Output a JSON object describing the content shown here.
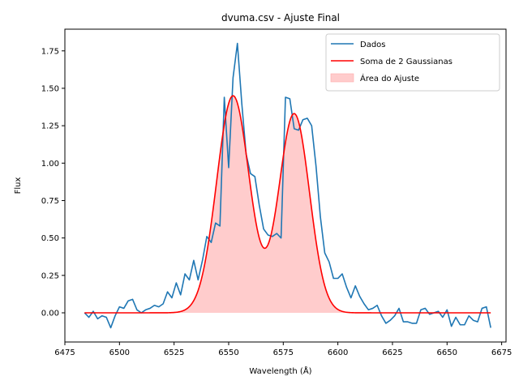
{
  "chart_data": {
    "type": "line",
    "title": "dvuma.csv - Ajuste Final",
    "xlabel": "Wavelength (Å)",
    "ylabel": "Flux",
    "xlim": [
      6475,
      6677
    ],
    "ylim": [
      -0.195,
      1.895
    ],
    "xticks": [
      6475,
      6500,
      6525,
      6550,
      6575,
      6600,
      6625,
      6650,
      6675
    ],
    "yticks": [
      0.0,
      0.25,
      0.5,
      0.75,
      1.0,
      1.25,
      1.5,
      1.75
    ],
    "xtick_labels": [
      "6475",
      "6500",
      "6525",
      "6550",
      "6575",
      "6600",
      "6625",
      "6650",
      "6675"
    ],
    "ytick_labels": [
      "0.00",
      "0.25",
      "0.50",
      "0.75",
      "1.00",
      "1.25",
      "1.50",
      "1.75"
    ],
    "grid": false,
    "legend_position": "top-right",
    "legend": [
      {
        "label": "Dados",
        "kind": "line",
        "color": "#1f77b4"
      },
      {
        "label": "Soma de 2 Gaussianas",
        "kind": "line",
        "color": "#ff0000"
      },
      {
        "label": "Área do Ajuste",
        "kind": "patch",
        "color": "#ff0000"
      }
    ],
    "series": [
      {
        "name": "Dados",
        "color": "#1f77b4",
        "x": [
          6484,
          6486,
          6488,
          6490,
          6492,
          6494,
          6496,
          6498,
          6500,
          6502,
          6504,
          6506,
          6508,
          6510,
          6512,
          6514,
          6516,
          6518,
          6520,
          6522,
          6524,
          6526,
          6528,
          6530,
          6532,
          6534,
          6536,
          6538,
          6540,
          6542,
          6544,
          6546,
          6548,
          6550,
          6552,
          6554,
          6556,
          6558,
          6560,
          6562,
          6564,
          6566,
          6568,
          6570,
          6572,
          6574,
          6576,
          6578,
          6580,
          6582,
          6584,
          6586,
          6588,
          6590,
          6592,
          6594,
          6596,
          6598,
          6600,
          6602,
          6604,
          6606,
          6608,
          6610,
          6612,
          6614,
          6616,
          6618,
          6620,
          6622,
          6624,
          6626,
          6628,
          6630,
          6632,
          6634,
          6636,
          6638,
          6640,
          6642,
          6644,
          6646,
          6648,
          6650,
          6652,
          6654,
          6656,
          6658,
          6660,
          6662,
          6664,
          6666,
          6668,
          6670
        ],
        "y": [
          0.0,
          -0.03,
          0.01,
          -0.04,
          -0.02,
          -0.03,
          -0.1,
          -0.02,
          0.04,
          0.03,
          0.08,
          0.09,
          0.02,
          0.0,
          0.02,
          0.03,
          0.05,
          0.04,
          0.06,
          0.14,
          0.1,
          0.2,
          0.12,
          0.26,
          0.22,
          0.35,
          0.22,
          0.35,
          0.51,
          0.47,
          0.6,
          0.58,
          1.44,
          0.97,
          1.57,
          1.8,
          1.4,
          1.06,
          0.93,
          0.91,
          0.72,
          0.56,
          0.52,
          0.51,
          0.53,
          0.5,
          1.44,
          1.43,
          1.23,
          1.22,
          1.29,
          1.3,
          1.25,
          0.98,
          0.64,
          0.4,
          0.34,
          0.23,
          0.23,
          0.26,
          0.17,
          0.1,
          0.18,
          0.11,
          0.06,
          0.02,
          0.03,
          0.05,
          -0.02,
          -0.07,
          -0.05,
          -0.02,
          0.03,
          -0.06,
          -0.06,
          -0.07,
          -0.07,
          0.02,
          0.03,
          -0.01,
          0.0,
          0.01,
          -0.03,
          0.02,
          -0.09,
          -0.03,
          -0.08,
          -0.08,
          -0.02,
          -0.05,
          -0.06,
          0.03,
          0.04,
          -0.1
        ]
      },
      {
        "name": "Soma de 2 Gaussianas",
        "color": "#ff0000",
        "model": [
          {
            "amplitude": 1.45,
            "center": 6552,
            "sigma": 7.5
          },
          {
            "amplitude": 1.33,
            "center": 6580,
            "sigma": 7.0
          }
        ],
        "x_range": [
          6484,
          6670
        ]
      }
    ]
  }
}
